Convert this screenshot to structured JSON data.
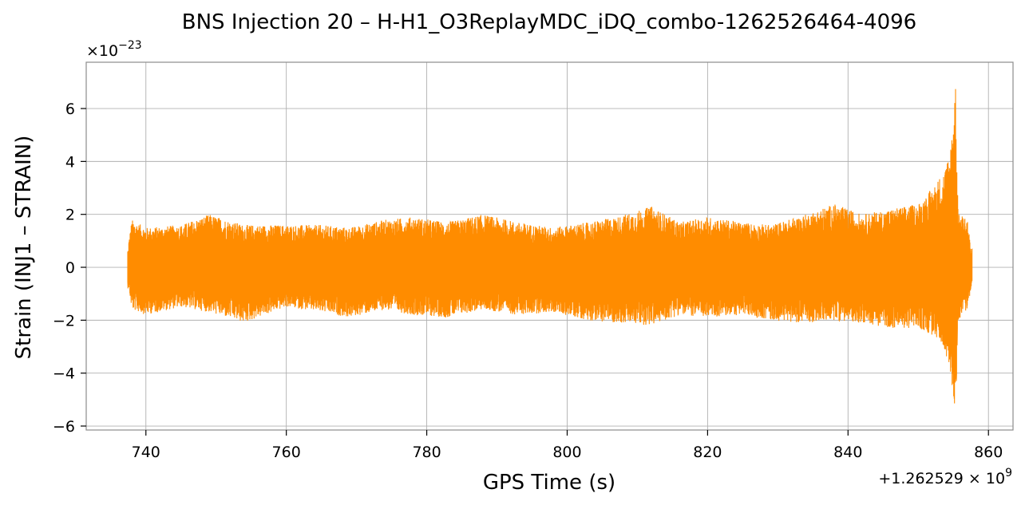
{
  "chart_data": {
    "type": "line",
    "title": "BNS Injection 20 – H-H1_O3ReplayMDC_iDQ_combo-1262526464-4096",
    "xlabel": "GPS Time (s)",
    "ylabel": "Strain (INJ1 – STRAIN)",
    "y_scale_factor_label": "×10",
    "y_scale_factor_exponent": "−23",
    "x_offset_label": "+1.262529 × 10",
    "x_offset_exponent": "9",
    "xlim": [
      731.5,
      863.5
    ],
    "ylim": [
      -6.15,
      7.75
    ],
    "x_ticks": [
      740,
      760,
      780,
      800,
      820,
      840,
      860
    ],
    "y_ticks": [
      -6,
      -4,
      -2,
      0,
      2,
      4,
      6
    ],
    "x_tick_labels": [
      "740",
      "760",
      "780",
      "800",
      "820",
      "840",
      "860"
    ],
    "y_tick_labels": [
      "−6",
      "−4",
      "−2",
      "0",
      "2",
      "4",
      "6"
    ],
    "grid": true,
    "series": [
      {
        "color": "#ff8c00",
        "x_start": 737.5,
        "x_end": 857.5,
        "envelope": [
          {
            "x": 737.5,
            "upper": 0.9,
            "lower": -0.7
          },
          {
            "x": 738.0,
            "upper": 1.8,
            "lower": -1.6
          },
          {
            "x": 740.0,
            "upper": 1.5,
            "lower": -1.8
          },
          {
            "x": 745.0,
            "upper": 1.6,
            "lower": -1.5
          },
          {
            "x": 749.0,
            "upper": 2.0,
            "lower": -1.7
          },
          {
            "x": 754.0,
            "upper": 1.6,
            "lower": -2.1
          },
          {
            "x": 760.0,
            "upper": 1.6,
            "lower": -1.5
          },
          {
            "x": 765.0,
            "upper": 1.6,
            "lower": -1.7
          },
          {
            "x": 769.0,
            "upper": 1.5,
            "lower": -1.9
          },
          {
            "x": 774.0,
            "upper": 1.8,
            "lower": -1.6
          },
          {
            "x": 778.0,
            "upper": 1.9,
            "lower": -1.8
          },
          {
            "x": 783.0,
            "upper": 1.7,
            "lower": -1.9
          },
          {
            "x": 788.0,
            "upper": 2.0,
            "lower": -1.6
          },
          {
            "x": 793.0,
            "upper": 1.7,
            "lower": -1.8
          },
          {
            "x": 798.0,
            "upper": 1.5,
            "lower": -1.7
          },
          {
            "x": 803.0,
            "upper": 1.7,
            "lower": -2.0
          },
          {
            "x": 807.0,
            "upper": 1.9,
            "lower": -2.1
          },
          {
            "x": 812.0,
            "upper": 2.3,
            "lower": -2.2
          },
          {
            "x": 816.0,
            "upper": 1.7,
            "lower": -1.8
          },
          {
            "x": 820.0,
            "upper": 1.9,
            "lower": -1.9
          },
          {
            "x": 825.0,
            "upper": 1.7,
            "lower": -1.8
          },
          {
            "x": 829.0,
            "upper": 1.6,
            "lower": -2.0
          },
          {
            "x": 834.0,
            "upper": 2.0,
            "lower": -2.1
          },
          {
            "x": 838.0,
            "upper": 2.4,
            "lower": -2.0
          },
          {
            "x": 842.0,
            "upper": 2.0,
            "lower": -2.1
          },
          {
            "x": 846.0,
            "upper": 2.2,
            "lower": -2.3
          },
          {
            "x": 850.0,
            "upper": 2.4,
            "lower": -2.3
          },
          {
            "x": 852.0,
            "upper": 3.0,
            "lower": -2.6
          },
          {
            "x": 853.5,
            "upper": 3.6,
            "lower": -2.9
          },
          {
            "x": 854.5,
            "upper": 4.3,
            "lower": -3.8
          },
          {
            "x": 855.3,
            "upper": 7.2,
            "lower": -5.5
          },
          {
            "x": 855.7,
            "upper": 2.0,
            "lower": -2.0
          },
          {
            "x": 857.0,
            "upper": 1.9,
            "lower": -1.6
          },
          {
            "x": 857.5,
            "upper": 0.7,
            "lower": -0.8
          }
        ]
      }
    ]
  }
}
